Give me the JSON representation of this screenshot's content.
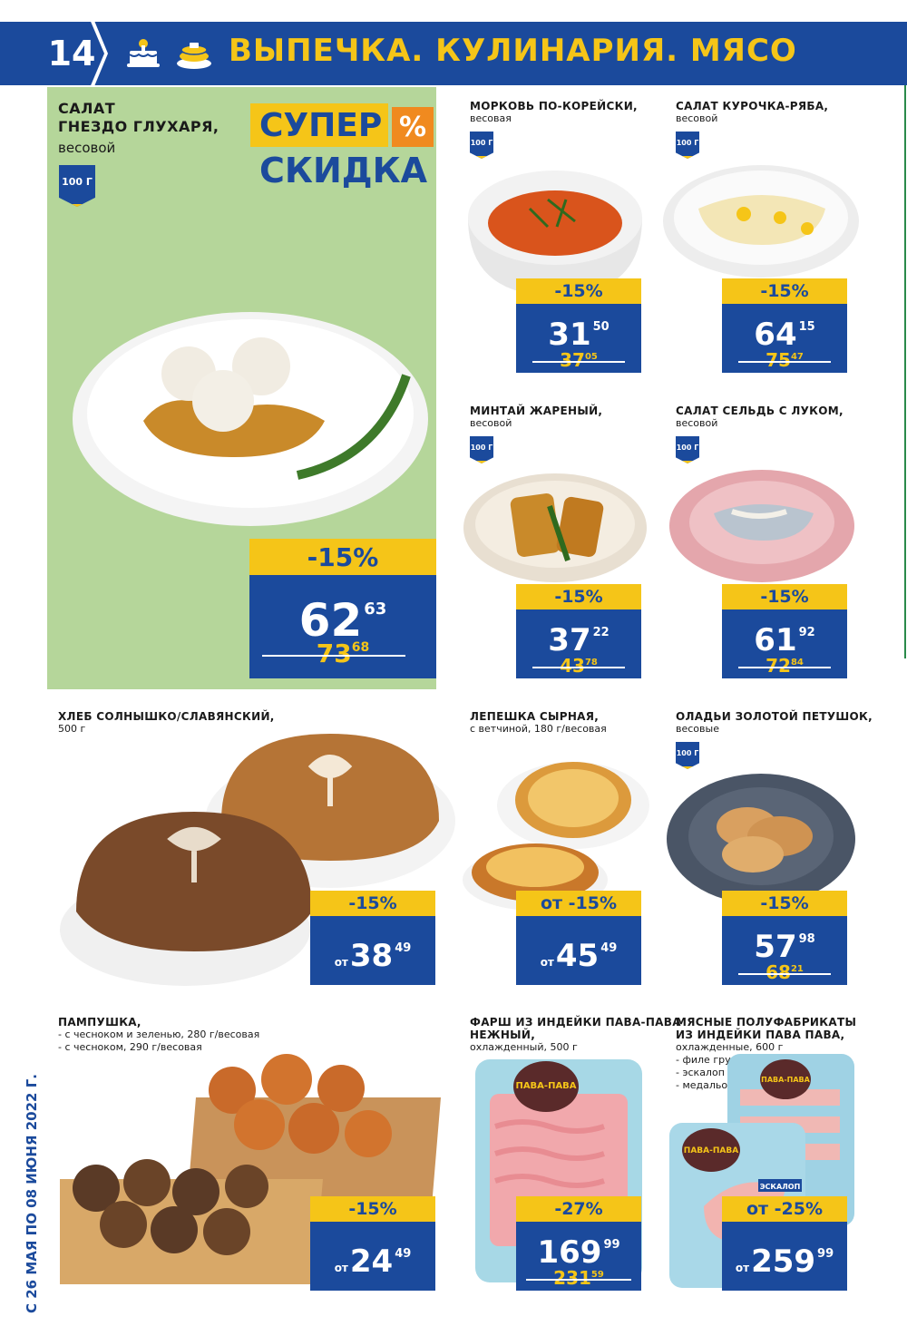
{
  "header": {
    "page_number": "14",
    "title": "ВЫПЕЧКА. КУЛИНАРИЯ. МЯСО",
    "icons": [
      "cake-icon",
      "pancake-icon"
    ]
  },
  "hero": {
    "name_line1": "САЛАТ",
    "name_line2": "ГНЕЗДО ГЛУХАРЯ,",
    "sub": "весовой",
    "badge": "100 Г",
    "promo_top": "СУПЕР",
    "promo_pct": "%",
    "promo_bottom": "СКИДКА",
    "discount": "-15%",
    "price_int": "62",
    "price_dec": "63",
    "old_int": "73",
    "old_dec": "68"
  },
  "products": [
    {
      "name": "МОРКОВЬ ПО-КОРЕЙСКИ,",
      "sub": "весовая",
      "badge": "100 Г",
      "discount": "-15%",
      "price_int": "31",
      "price_dec": "50",
      "old_int": "37",
      "old_dec": "05"
    },
    {
      "name": "САЛАТ КУРОЧКА-РЯБА,",
      "sub": "весовой",
      "badge": "100 Г",
      "discount": "-15%",
      "price_int": "64",
      "price_dec": "15",
      "old_int": "75",
      "old_dec": "47"
    },
    {
      "name": "МИНТАЙ ЖАРЕНЫЙ,",
      "sub": "весовой",
      "badge": "100 Г",
      "discount": "-15%",
      "price_int": "37",
      "price_dec": "22",
      "old_int": "43",
      "old_dec": "78"
    },
    {
      "name": "САЛАТ СЕЛЬДЬ С ЛУКОМ,",
      "sub": "весовой",
      "badge": "100 Г",
      "discount": "-15%",
      "price_int": "61",
      "price_dec": "92",
      "old_int": "72",
      "old_dec": "84"
    },
    {
      "name": "ХЛЕБ СОЛНЫШКО/СЛАВЯНСКИЙ,",
      "sub": "500 г",
      "discount": "-15%",
      "prefix": "от",
      "price_int": "38",
      "price_dec": "49"
    },
    {
      "name": "ЛЕПЕШКА СЫРНАЯ,",
      "sub": "с ветчиной, 180 г/весовая",
      "discount": "от -15%",
      "prefix": "от",
      "price_int": "45",
      "price_dec": "49"
    },
    {
      "name": "ОЛАДЬИ ЗОЛОТОЙ ПЕТУШОК,",
      "sub": "весовые",
      "badge": "100 Г",
      "discount": "-15%",
      "price_int": "57",
      "price_dec": "98",
      "old_int": "68",
      "old_dec": "21"
    },
    {
      "name": "ПАМПУШКА,",
      "sub1": "- с чесноком и зеленью, 280 г/весовая",
      "sub2": "- с чесноком, 290 г/весовая",
      "discount": "-15%",
      "prefix": "от",
      "price_int": "24",
      "price_dec": "49"
    },
    {
      "name1": "ФАРШ ИЗ ИНДЕЙКИ ПАВА-ПАВА",
      "name2": "НЕЖНЫЙ,",
      "sub": "охлажденный, 500 г",
      "discount": "-27%",
      "price_int": "169",
      "price_dec": "99",
      "old_int": "231",
      "old_dec": "59"
    },
    {
      "name1": "МЯСНЫЕ ПОЛУФАБРИКАТЫ",
      "name2": "ИЗ ИНДЕЙКИ ПАВА ПАВА,",
      "sub1": "охлажденные, 600 г",
      "sub2": "- филе грудки",
      "sub3": "- эскалоп",
      "sub4": "- медальоны",
      "discount": "от -25%",
      "prefix": "от",
      "price_int": "259",
      "price_dec": "99"
    }
  ],
  "package_labels": {
    "brand1": "ПАВА-ПАВА",
    "brand2": "ПАВА-ПАВА",
    "brand3": "ПАВА-ПАВА",
    "escalope": "ЭСКАЛОП"
  },
  "side_date": "С 26 МАЯ ПО 08 ИЮНЯ 2022 Г.",
  "colors": {
    "brand_blue": "#1b4a9c",
    "brand_yellow": "#f5c518",
    "hero_green": "#b5d69a",
    "accent_orange": "#f08a1f"
  }
}
